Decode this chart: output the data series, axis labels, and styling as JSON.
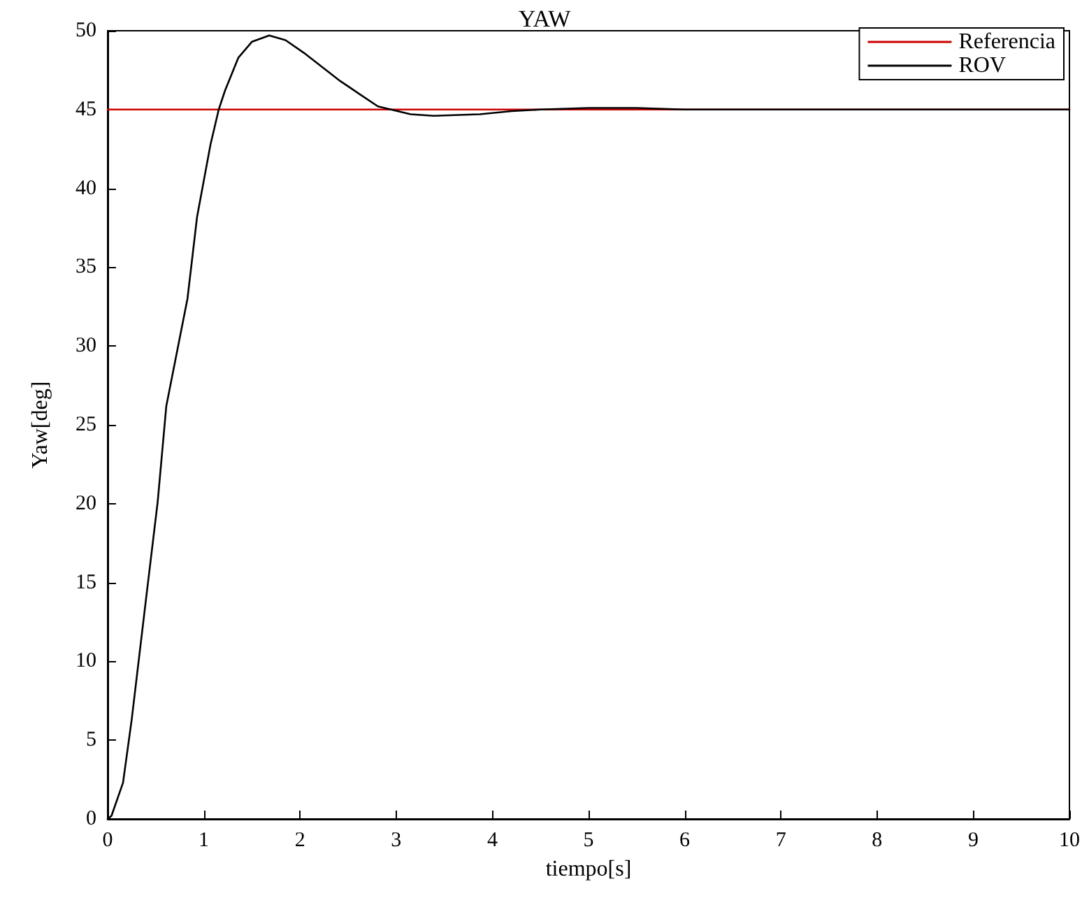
{
  "chart_data": {
    "type": "line",
    "title": "YAW",
    "xlabel": "tiempo[s]",
    "ylabel": "Yaw[deg]",
    "xlim": [
      0,
      10
    ],
    "xticks": [
      0,
      1,
      2,
      3,
      4,
      5,
      6,
      7,
      8,
      9,
      10
    ],
    "ylim": [
      0,
      50
    ],
    "yticks": [
      0,
      5,
      10,
      15,
      20,
      25,
      30,
      35,
      40,
      45,
      50
    ],
    "grid": false,
    "legend": "top right",
    "line_style": "solid",
    "marker": "none",
    "series": [
      {
        "name": "Referencia",
        "color": "#cc0000",
        "x": [
          0,
          10
        ],
        "values": [
          45,
          45
        ]
      },
      {
        "name": "ROV",
        "color": "#000000",
        "x": [
          0,
          0.04,
          0.16,
          0.25,
          0.4,
          0.52,
          0.61,
          0.83,
          0.93,
          1.07,
          1.155,
          1.22,
          1.36,
          1.5,
          1.68,
          1.85,
          2.04,
          2.42,
          2.81,
          3.15,
          3.39,
          3.87,
          4.2,
          4.5,
          5,
          5.5,
          6,
          7,
          8,
          9,
          10
        ],
        "values": [
          0,
          0.2,
          2.3,
          6.3,
          14,
          20.1,
          26.2,
          33,
          38.2,
          42.8,
          45,
          46.2,
          48.3,
          49.3,
          49.7,
          49.4,
          48.6,
          46.8,
          45.2,
          44.7,
          44.6,
          44.7,
          44.9,
          45,
          45.1,
          45.1,
          45,
          45,
          45,
          45,
          45
        ]
      }
    ]
  }
}
